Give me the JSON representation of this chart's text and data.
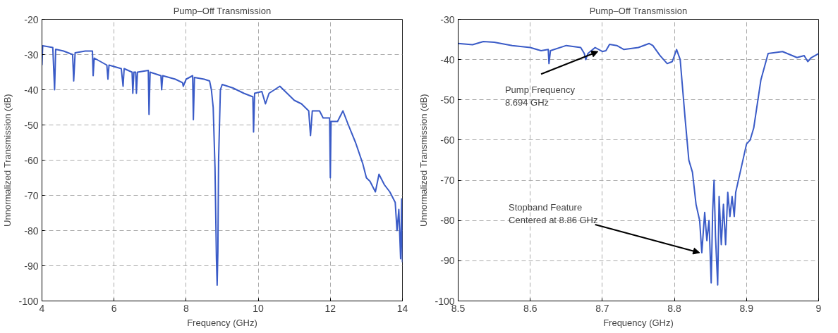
{
  "chart_data": [
    {
      "type": "line",
      "title": "Pump–Off Transmission",
      "xlabel": "Frequency (GHz)",
      "ylabel": "Unnormalized Transmission (dB)",
      "xlim": [
        4,
        14
      ],
      "ylim": [
        -100,
        -20
      ],
      "xticks": [
        4,
        6,
        8,
        10,
        12,
        14
      ],
      "yticks": [
        -100,
        -90,
        -80,
        -70,
        -60,
        -50,
        -40,
        -30,
        -20
      ],
      "grid": true,
      "line_style": "solid",
      "series": [
        {
          "color": "#3a5bc7",
          "x": [
            4.0,
            4.02,
            4.3,
            4.35,
            4.38,
            4.6,
            4.85,
            4.88,
            4.92,
            5.2,
            5.4,
            5.42,
            5.45,
            5.8,
            5.83,
            5.86,
            6.2,
            6.25,
            6.28,
            6.5,
            6.52,
            6.55,
            6.6,
            6.62,
            6.65,
            6.95,
            6.97,
            7.0,
            7.3,
            7.32,
            7.35,
            7.7,
            7.9,
            7.92,
            8.0,
            8.18,
            8.2,
            8.23,
            8.5,
            8.65,
            8.7,
            8.75,
            8.8,
            8.84,
            8.86,
            8.88,
            8.9,
            8.95,
            9.0,
            9.3,
            9.6,
            9.85,
            9.87,
            9.9,
            10.1,
            10.2,
            10.3,
            10.6,
            10.8,
            11.0,
            11.2,
            11.4,
            11.45,
            11.5,
            11.7,
            11.8,
            11.98,
            12.0,
            12.02,
            12.2,
            12.35,
            12.5,
            12.7,
            12.9,
            13.0,
            13.1,
            13.25,
            13.35,
            13.5,
            13.65,
            13.8,
            13.85,
            13.9,
            13.95,
            13.98,
            14.0
          ],
          "values": [
            -33,
            -27.5,
            -28,
            -40,
            -28.5,
            -29,
            -30,
            -37.5,
            -29.5,
            -29,
            -29,
            -36,
            -31,
            -33,
            -37,
            -33,
            -34,
            -39,
            -34,
            -35,
            -41,
            -35,
            -35,
            -41,
            -35,
            -34.5,
            -47,
            -35,
            -36,
            -40,
            -36,
            -37,
            -38,
            -39,
            -37,
            -36,
            -48.5,
            -36.5,
            -37,
            -37.5,
            -40,
            -45,
            -62,
            -88,
            -95.5,
            -86,
            -60,
            -40,
            -38.5,
            -39.5,
            -41,
            -42,
            -52,
            -41,
            -40.5,
            -44,
            -41,
            -39,
            -41,
            -43,
            -44,
            -46,
            -53,
            -46,
            -46,
            -48,
            -48,
            -65,
            -49,
            -49,
            -46,
            -50,
            -55,
            -61,
            -65,
            -66,
            -69,
            -64,
            -67,
            -69,
            -72,
            -80,
            -74,
            -88,
            -71,
            -89
          ]
        }
      ]
    },
    {
      "type": "line",
      "title": "Pump–Off Transmission",
      "xlabel": "Frequency (GHz)",
      "ylabel": "Unnormalized Transmission (dB)",
      "xlim": [
        8.5,
        9
      ],
      "ylim": [
        -100,
        -30
      ],
      "xticks": [
        8.5,
        8.6,
        8.7,
        8.8,
        8.9,
        9
      ],
      "yticks": [
        -100,
        -90,
        -80,
        -70,
        -60,
        -50,
        -40,
        -30
      ],
      "grid": true,
      "line_style": "solid",
      "annotations": [
        {
          "text": "Pump Frequency\n8.694 GHz",
          "x": 8.694,
          "y": -38
        },
        {
          "text": "Stopband Feature\nCentered at 8.86 GHz",
          "x": 8.835,
          "y": -88
        }
      ],
      "series": [
        {
          "color": "#3a5bc7",
          "x": [
            8.5,
            8.52,
            8.535,
            8.55,
            8.575,
            8.6,
            8.615,
            8.625,
            8.626,
            8.628,
            8.65,
            8.67,
            8.675,
            8.677,
            8.68,
            8.69,
            8.7,
            8.705,
            8.71,
            8.72,
            8.73,
            8.75,
            8.765,
            8.77,
            8.78,
            8.79,
            8.797,
            8.803,
            8.808,
            8.815,
            8.82,
            8.825,
            8.83,
            8.835,
            8.838,
            8.842,
            8.845,
            8.848,
            8.851,
            8.853,
            8.855,
            8.857,
            8.86,
            8.862,
            8.865,
            8.868,
            8.871,
            8.874,
            8.877,
            8.88,
            8.883,
            8.885,
            8.89,
            8.9,
            8.905,
            8.91,
            8.92,
            8.93,
            8.95,
            8.97,
            8.98,
            8.985,
            8.99,
            9.0
          ],
          "values": [
            -36,
            -36.3,
            -35.5,
            -35.7,
            -36.5,
            -37,
            -37.8,
            -37.5,
            -41,
            -37.8,
            -36.5,
            -37,
            -38.5,
            -40,
            -38.5,
            -37,
            -38,
            -37.8,
            -36.2,
            -36.5,
            -37.5,
            -37,
            -36,
            -36.5,
            -39,
            -41,
            -40.5,
            -37.5,
            -40,
            -55,
            -65,
            -68,
            -76,
            -80,
            -88,
            -78,
            -85,
            -80,
            -95.5,
            -78,
            -70,
            -84,
            -96,
            -74,
            -86,
            -76,
            -86,
            -73,
            -79,
            -74,
            -79,
            -73,
            -69,
            -61,
            -60,
            -57,
            -45,
            -38.5,
            -38,
            -39.5,
            -39,
            -40.5,
            -39.5,
            -38.5
          ]
        }
      ]
    }
  ]
}
